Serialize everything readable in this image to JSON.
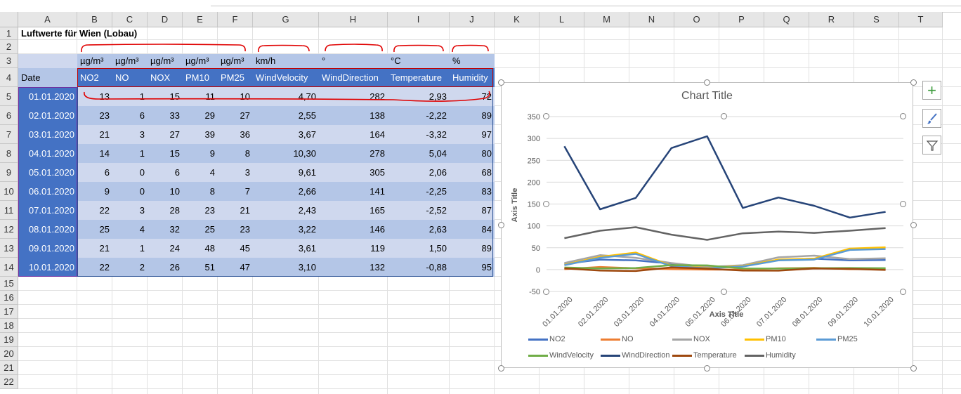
{
  "columns": [
    "A",
    "B",
    "C",
    "D",
    "E",
    "F",
    "G",
    "H",
    "I",
    "J",
    "K",
    "L",
    "M",
    "N",
    "O",
    "P",
    "Q",
    "R",
    "S",
    "T"
  ],
  "rows": [
    "1",
    "2",
    "3",
    "4",
    "5",
    "6",
    "7",
    "8",
    "9",
    "10",
    "11",
    "12",
    "13",
    "14",
    "15",
    "16",
    "17",
    "18",
    "19",
    "20",
    "21",
    "22"
  ],
  "sheet": {
    "title": "Luftwerte für Wien (Lobau)",
    "units": [
      "µg/m³",
      "µg/m³",
      "µg/m³",
      "µg/m³",
      "µg/m³",
      "km/h",
      "°",
      "°C",
      "%"
    ],
    "headers": [
      "Date",
      "NO2",
      "NO",
      "NOX",
      "PM10",
      "PM25",
      "WindVelocity",
      "WindDirection",
      "Temperature",
      "Humidity"
    ],
    "data": [
      [
        "01.01.2020",
        "13",
        "1",
        "15",
        "11",
        "10",
        "4,70",
        "282",
        "2,93",
        "72"
      ],
      [
        "02.01.2020",
        "23",
        "6",
        "33",
        "29",
        "27",
        "2,55",
        "138",
        "-2,22",
        "89"
      ],
      [
        "03.01.2020",
        "21",
        "3",
        "27",
        "39",
        "36",
        "3,67",
        "164",
        "-3,32",
        "97"
      ],
      [
        "04.01.2020",
        "14",
        "1",
        "15",
        "9",
        "8",
        "10,30",
        "278",
        "5,04",
        "80"
      ],
      [
        "05.01.2020",
        "6",
        "0",
        "6",
        "4",
        "3",
        "9,61",
        "305",
        "2,06",
        "68"
      ],
      [
        "06.01.2020",
        "9",
        "0",
        "10",
        "8",
        "7",
        "2,66",
        "141",
        "-2,25",
        "83"
      ],
      [
        "07.01.2020",
        "22",
        "3",
        "28",
        "23",
        "21",
        "2,43",
        "165",
        "-2,52",
        "87"
      ],
      [
        "08.01.2020",
        "25",
        "4",
        "32",
        "25",
        "23",
        "3,22",
        "146",
        "2,63",
        "84"
      ],
      [
        "09.01.2020",
        "21",
        "1",
        "24",
        "48",
        "45",
        "3,61",
        "119",
        "1,50",
        "89"
      ],
      [
        "10.01.2020",
        "22",
        "2",
        "26",
        "51",
        "47",
        "3,10",
        "132",
        "-0,88",
        "95"
      ]
    ]
  },
  "colors": {
    "header_blue": "#4472c4",
    "band_light": "#cfd8ee",
    "band_dark": "#b4c6e7",
    "annotation_red": "#e00000"
  },
  "chart_data": {
    "type": "line",
    "title": "Chart Title",
    "xlabel": "Axis Title",
    "ylabel": "Axis Title",
    "ylim": [
      -50,
      350
    ],
    "yticks": [
      "350",
      "300",
      "250",
      "200",
      "150",
      "100",
      "50",
      "0",
      "-50"
    ],
    "categories": [
      "01.01.2020",
      "02.01.2020",
      "03.01.2020",
      "04.01.2020",
      "05.01.2020",
      "06.01.2020",
      "07.01.2020",
      "08.01.2020",
      "09.01.2020",
      "10.01.2020"
    ],
    "legend": "bottom",
    "series": [
      {
        "name": "NO2",
        "color": "#4472c4",
        "values": [
          13,
          23,
          21,
          14,
          6,
          9,
          22,
          25,
          21,
          22
        ]
      },
      {
        "name": "NO",
        "color": "#ed7d31",
        "values": [
          1,
          6,
          3,
          1,
          0,
          0,
          3,
          4,
          1,
          2
        ]
      },
      {
        "name": "NOX",
        "color": "#a5a5a5",
        "values": [
          15,
          33,
          27,
          15,
          6,
          10,
          28,
          32,
          24,
          26
        ]
      },
      {
        "name": "PM10",
        "color": "#ffc000",
        "values": [
          11,
          29,
          39,
          9,
          4,
          8,
          23,
          25,
          48,
          51
        ]
      },
      {
        "name": "PM25",
        "color": "#5b9bd5",
        "values": [
          10,
          27,
          36,
          8,
          3,
          7,
          21,
          23,
          45,
          47
        ]
      },
      {
        "name": "WindVelocity",
        "color": "#70ad47",
        "values": [
          4.7,
          2.55,
          3.67,
          10.3,
          9.61,
          2.66,
          2.43,
          3.22,
          3.61,
          3.1
        ]
      },
      {
        "name": "WindDirection",
        "color": "#264478",
        "values": [
          282,
          138,
          164,
          278,
          305,
          141,
          165,
          146,
          119,
          132
        ]
      },
      {
        "name": "Temperature",
        "color": "#9e480e",
        "values": [
          2.93,
          -2.22,
          -3.32,
          5.04,
          2.06,
          -2.25,
          -2.52,
          2.63,
          1.5,
          -0.88
        ]
      },
      {
        "name": "Humidity",
        "color": "#636363",
        "values": [
          72,
          89,
          97,
          80,
          68,
          83,
          87,
          84,
          89,
          95
        ]
      }
    ]
  }
}
